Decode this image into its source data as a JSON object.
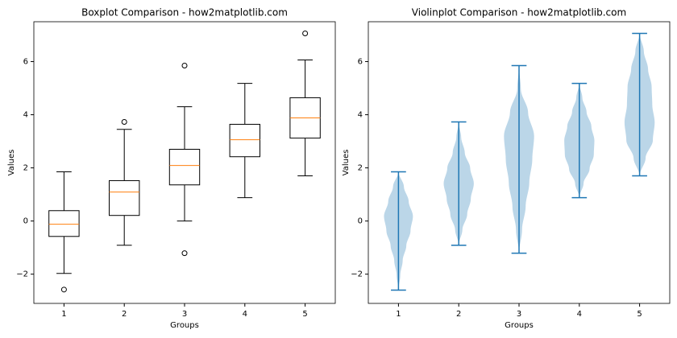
{
  "chart_data": [
    {
      "type": "box",
      "title": "Boxplot Comparison - how2matplotlib.com",
      "xlabel": "Groups",
      "ylabel": "Values",
      "categories": [
        "1",
        "2",
        "3",
        "4",
        "5"
      ],
      "ylim": [
        -3.1,
        7.5
      ],
      "yticks": [
        {
          "value": -2,
          "label": "−2"
        },
        0,
        2,
        4,
        6
      ],
      "color": "#000000",
      "median_color": "#ff7f0e",
      "boxes": [
        {
          "whislo": -1.97,
          "q1": -0.58,
          "med": -0.12,
          "q3": 0.39,
          "whishi": 1.85,
          "fliers": [
            -2.58
          ]
        },
        {
          "whislo": -0.91,
          "q1": 0.21,
          "med": 1.09,
          "q3": 1.52,
          "whishi": 3.45,
          "fliers": [
            3.73
          ]
        },
        {
          "whislo": 0.0,
          "q1": 1.36,
          "med": 2.09,
          "q3": 2.7,
          "whishi": 4.3,
          "fliers": [
            5.85,
            -1.21
          ]
        },
        {
          "whislo": 0.88,
          "q1": 2.42,
          "med": 3.06,
          "q3": 3.64,
          "whishi": 5.18,
          "fliers": []
        },
        {
          "whislo": 1.7,
          "q1": 3.12,
          "med": 3.88,
          "q3": 4.64,
          "whishi": 6.06,
          "fliers": [
            7.06
          ]
        }
      ]
    },
    {
      "type": "violin",
      "title": "Violinplot Comparison - how2matplotlib.com",
      "xlabel": "Groups",
      "ylabel": "Values",
      "categories": [
        "1",
        "2",
        "3",
        "4",
        "5"
      ],
      "ylim": [
        -3.1,
        7.5
      ],
      "yticks": [
        {
          "value": -2,
          "label": "−2"
        },
        0,
        2,
        4,
        6
      ],
      "color": "#1f77b4",
      "violins": [
        {
          "min": -2.6,
          "max": 1.85,
          "density": [
            0,
            0.03,
            0.07,
            0.13,
            0.2,
            0.24,
            0.17,
            0.09,
            0
          ]
        },
        {
          "min": -0.91,
          "max": 3.73,
          "density": [
            0,
            0.06,
            0.14,
            0.2,
            0.25,
            0.19,
            0.1,
            0.04,
            0
          ]
        },
        {
          "min": -1.21,
          "max": 5.85,
          "density": [
            0,
            0.05,
            0.11,
            0.17,
            0.22,
            0.25,
            0.15,
            0.03,
            0
          ]
        },
        {
          "min": 0.88,
          "max": 5.18,
          "density": [
            0,
            0.07,
            0.17,
            0.24,
            0.25,
            0.2,
            0.12,
            0.05,
            0
          ]
        },
        {
          "min": 1.7,
          "max": 7.06,
          "density": [
            0,
            0.1,
            0.22,
            0.25,
            0.21,
            0.2,
            0.14,
            0.07,
            0
          ]
        }
      ]
    }
  ]
}
